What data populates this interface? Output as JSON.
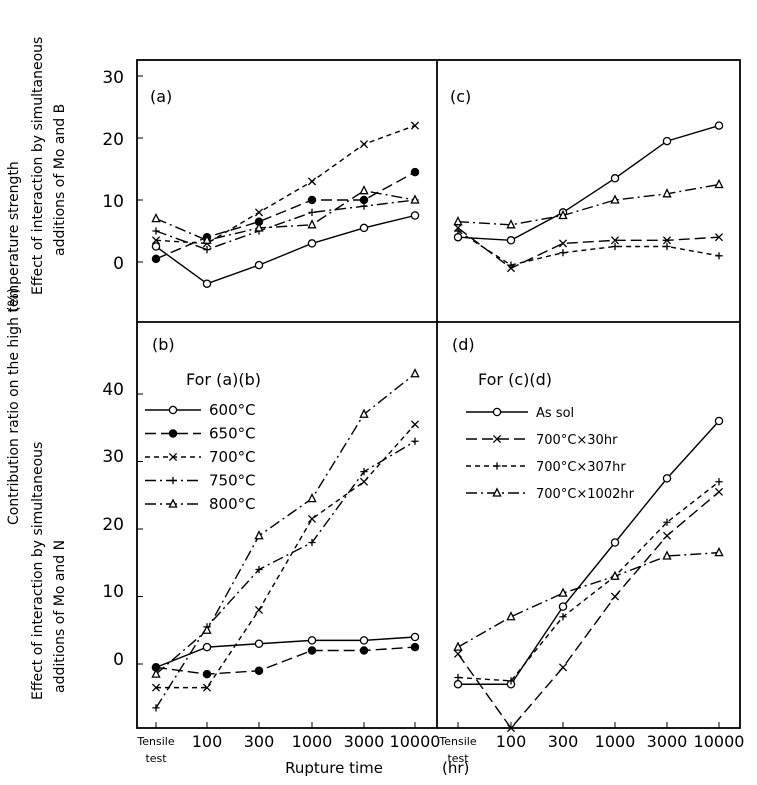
{
  "figure": {
    "y_label_outer": "Contribution ratio on the high temperature strength",
    "y_label_unit": "(%)",
    "x_label": "Rupture time",
    "x_unit": "(hr)",
    "x_ticks_left": [
      "Tensile",
      "100",
      "300",
      "1000",
      "3000",
      "10000"
    ],
    "x_ticks_right": [
      "Tensile",
      "100",
      "300",
      "1000",
      "3000",
      "10000"
    ],
    "tensile_sub": "test"
  },
  "colors": {
    "ink": "#000000",
    "background": "#ffffff"
  },
  "chart_data": [
    {
      "id": "a",
      "panel_label": "(a)",
      "type": "line",
      "ylabel_line1": "Effect of interaction by simultaneous",
      "ylabel_line2": "additions of Mo and B",
      "y_ticks": [
        "30",
        "20",
        "10",
        "0"
      ],
      "ylim": [
        -10,
        30
      ],
      "grid": false,
      "categories": [
        "Tensile test",
        "100",
        "300",
        "1000",
        "3000",
        "10000"
      ],
      "series": [
        {
          "name": "600°C",
          "marker": "circle-open",
          "dash": "solid",
          "values": [
            2.5,
            -3.5,
            -0.5,
            3,
            5.5,
            7.5
          ]
        },
        {
          "name": "650°C",
          "marker": "circle-filled",
          "dash": "long-dash",
          "values": [
            0.5,
            4,
            6.5,
            10,
            10,
            14.5
          ]
        },
        {
          "name": "700°C",
          "marker": "cross",
          "dash": "short-dash",
          "values": [
            3.5,
            3,
            8,
            13,
            19,
            22
          ]
        },
        {
          "name": "750°C",
          "marker": "plus",
          "dash": "dash-dot",
          "values": [
            5,
            2,
            5,
            8,
            9,
            10
          ]
        },
        {
          "name": "800°C",
          "marker": "triangle-open",
          "dash": "dash-dot",
          "values": [
            7,
            3.5,
            5.5,
            6,
            11.5,
            10
          ]
        }
      ]
    },
    {
      "id": "b",
      "panel_label": "(b)",
      "type": "line",
      "ylabel_line1": "Effect of interaction by simultaneous",
      "ylabel_line2": "additions of Mo and N",
      "y_ticks": [
        "40",
        "30",
        "20",
        "10",
        "0"
      ],
      "ylim": [
        -10,
        50
      ],
      "grid": false,
      "legend_title": "For (a)(b)",
      "legend_position": "upper-left",
      "categories": [
        "Tensile test",
        "100",
        "300",
        "1000",
        "3000",
        "10000"
      ],
      "series": [
        {
          "name": "600°C",
          "marker": "circle-open",
          "dash": "solid",
          "values": [
            -0.5,
            2.5,
            3,
            3.5,
            3.5,
            4
          ]
        },
        {
          "name": "650°C",
          "marker": "circle-filled",
          "dash": "long-dash",
          "values": [
            -0.5,
            -1.5,
            -1,
            2,
            2,
            2.5
          ]
        },
        {
          "name": "700°C",
          "marker": "cross",
          "dash": "short-dash",
          "values": [
            -3.5,
            -3.5,
            8,
            21.5,
            27,
            35.5
          ]
        },
        {
          "name": "750°C",
          "marker": "plus",
          "dash": "dash-dot",
          "values": [
            -6.5,
            5.5,
            14,
            18,
            28.5,
            33
          ]
        },
        {
          "name": "800°C",
          "marker": "triangle-open",
          "dash": "dash-dot",
          "values": [
            -1.5,
            5,
            19,
            24.5,
            37,
            43
          ]
        }
      ]
    },
    {
      "id": "c",
      "panel_label": "(c)",
      "type": "line",
      "ylim": [
        -10,
        30
      ],
      "grid": false,
      "categories": [
        "Tensile test",
        "100",
        "300",
        "1000",
        "3000",
        "10000"
      ],
      "series": [
        {
          "name": "As sol",
          "marker": "circle-open",
          "dash": "solid",
          "values": [
            4,
            3.5,
            8,
            13.5,
            19.5,
            22
          ]
        },
        {
          "name": "700°C×30hr",
          "marker": "cross",
          "dash": "long-dash",
          "values": [
            5.5,
            -1,
            3,
            3.5,
            3.5,
            4
          ]
        },
        {
          "name": "700°C×307hr",
          "marker": "plus",
          "dash": "short-dash",
          "values": [
            5,
            -0.5,
            1.5,
            2.5,
            2.5,
            1
          ]
        },
        {
          "name": "700°C×1002hr",
          "marker": "triangle-open",
          "dash": "dash-dot",
          "values": [
            6.5,
            6,
            7.5,
            10,
            11,
            12.5
          ]
        }
      ]
    },
    {
      "id": "d",
      "panel_label": "(d)",
      "type": "line",
      "ylim": [
        -10,
        50
      ],
      "grid": false,
      "legend_title": "For (c)(d)",
      "legend_position": "upper-left",
      "categories": [
        "Tensile test",
        "100",
        "300",
        "1000",
        "3000",
        "10000"
      ],
      "series": [
        {
          "name": "As sol",
          "marker": "circle-open",
          "dash": "solid",
          "values": [
            -3,
            -3,
            8.5,
            18,
            27.5,
            36
          ]
        },
        {
          "name": "700°C×30hr",
          "marker": "cross",
          "dash": "long-dash",
          "values": [
            1.5,
            -9.5,
            -0.5,
            10,
            19,
            25.5
          ]
        },
        {
          "name": "700°C×307hr",
          "marker": "plus",
          "dash": "short-dash",
          "values": [
            -2,
            -2.5,
            7,
            13,
            21,
            27
          ]
        },
        {
          "name": "700°C×1002hr",
          "marker": "triangle-open",
          "dash": "dash-dot",
          "values": [
            2.5,
            7,
            10.5,
            13,
            16,
            16.5
          ]
        }
      ]
    }
  ]
}
